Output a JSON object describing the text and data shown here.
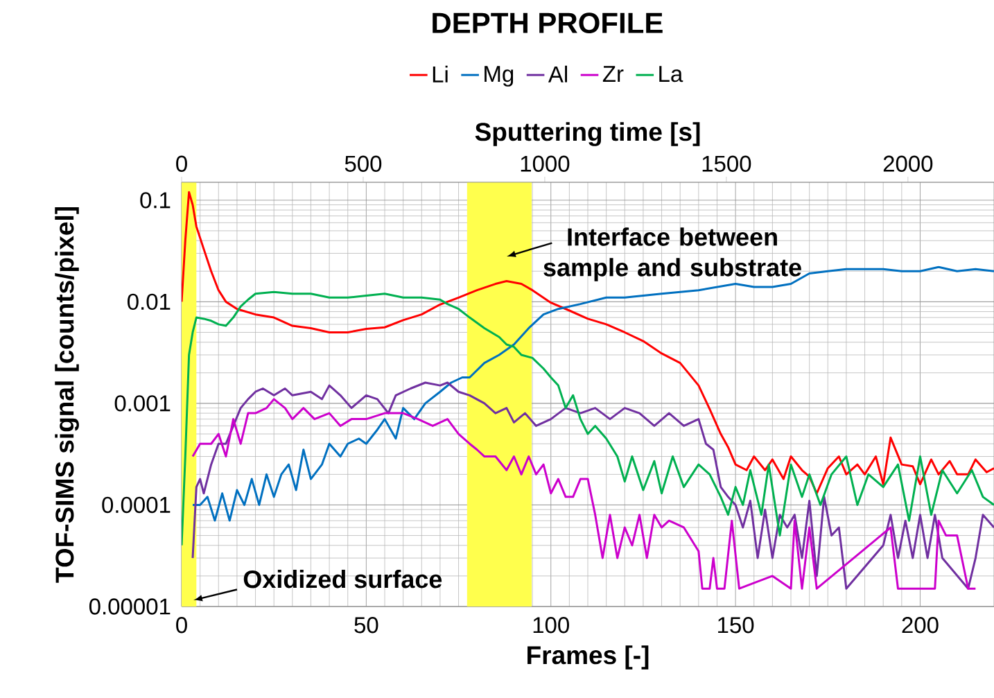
{
  "chart_data": {
    "type": "line",
    "title": "DEPTH PROFILE",
    "xlabel": "Frames [-]",
    "ylabel": "TOF-SIMS signal [counts/pixel]",
    "x2label": "Sputtering time [s]",
    "xlim": [
      0,
      220
    ],
    "xticks": [
      0,
      50,
      100,
      150,
      200
    ],
    "x2lim": [
      0,
      2237
    ],
    "x2ticks": [
      0,
      500,
      1000,
      1500,
      2000
    ],
    "ylim": [
      1e-05,
      0.15
    ],
    "yticks": [
      {
        "value": 1e-05,
        "label": "0.00001"
      },
      {
        "value": 0.0001,
        "label": "0.0001"
      },
      {
        "value": 0.001,
        "label": "0.001"
      },
      {
        "value": 0.01,
        "label": "0.01"
      },
      {
        "value": 0.1,
        "label": "0.1"
      }
    ],
    "log": "y",
    "grid": true,
    "legend": "top",
    "marker": "none",
    "line_style": "solid",
    "bands": [
      {
        "axis": "x",
        "from": 0,
        "to": 4,
        "label": "Oxidized surface",
        "color": "#ffff4d"
      },
      {
        "axis": "x",
        "from": 77.3,
        "to": 94.8,
        "label": "Interface between sample and substrate",
        "color": "#ffff4d"
      }
    ],
    "series": [
      {
        "name": "Li",
        "color": "#ff0000",
        "x": [
          0,
          1,
          2,
          3,
          4,
          6,
          8,
          10,
          12,
          15,
          20,
          25,
          30,
          35,
          40,
          45,
          50,
          55,
          60,
          65,
          70,
          75,
          80,
          85,
          88,
          92,
          95,
          100,
          105,
          110,
          115,
          120,
          125,
          130,
          135,
          140,
          143,
          146,
          148,
          150,
          153,
          155,
          158,
          160,
          163,
          165,
          168,
          170,
          172,
          175,
          178,
          180,
          183,
          185,
          188,
          190,
          192,
          195,
          198,
          200,
          203,
          205,
          208,
          210,
          213,
          215,
          218,
          220
        ],
        "values": [
          0.01,
          0.04,
          0.12,
          0.09,
          0.055,
          0.033,
          0.02,
          0.013,
          0.01,
          0.0085,
          0.0075,
          0.007,
          0.0058,
          0.0055,
          0.005,
          0.005,
          0.0054,
          0.0056,
          0.0066,
          0.0075,
          0.0094,
          0.011,
          0.013,
          0.015,
          0.016,
          0.015,
          0.013,
          0.0098,
          0.0082,
          0.0068,
          0.006,
          0.005,
          0.0041,
          0.0031,
          0.0025,
          0.0015,
          0.00088,
          0.0005,
          0.00037,
          0.00025,
          0.00022,
          0.0003,
          0.00022,
          0.00028,
          0.00018,
          0.0003,
          0.00022,
          0.00019,
          0.00013,
          0.00023,
          0.0003,
          0.0002,
          0.00025,
          0.0002,
          0.0003,
          0.00016,
          0.00046,
          0.00025,
          0.00024,
          0.00016,
          0.00028,
          0.0002,
          0.00027,
          0.0002,
          0.0002,
          0.00028,
          0.00021,
          0.00023
        ]
      },
      {
        "name": "Mg",
        "color": "#0070c0",
        "x": [
          3,
          5,
          7,
          9,
          11,
          13,
          15,
          17,
          19,
          21,
          23,
          25,
          27,
          29,
          31,
          33,
          35,
          38,
          40,
          43,
          45,
          48,
          50,
          53,
          55,
          58,
          60,
          63,
          66,
          70,
          73,
          76,
          78,
          82,
          86,
          90,
          94,
          98,
          102,
          108,
          115,
          120,
          130,
          140,
          150,
          155,
          160,
          165,
          170,
          175,
          180,
          185,
          190,
          195,
          200,
          205,
          210,
          215,
          220
        ],
        "values": [
          0.0001,
          0.0001,
          0.00012,
          7e-05,
          0.00013,
          7e-05,
          0.00014,
          0.0001,
          0.00018,
          0.0001,
          0.0002,
          0.00012,
          0.0002,
          0.00025,
          0.00014,
          0.00035,
          0.00018,
          0.00025,
          0.0004,
          0.0003,
          0.0004,
          0.00045,
          0.0004,
          0.00055,
          0.0007,
          0.00045,
          0.0009,
          0.0007,
          0.001,
          0.0013,
          0.0016,
          0.0018,
          0.0018,
          0.0025,
          0.003,
          0.0038,
          0.0055,
          0.0075,
          0.0085,
          0.0095,
          0.011,
          0.011,
          0.012,
          0.013,
          0.015,
          0.014,
          0.014,
          0.015,
          0.019,
          0.02,
          0.021,
          0.021,
          0.021,
          0.02,
          0.02,
          0.022,
          0.02,
          0.021,
          0.02
        ]
      },
      {
        "name": "Al",
        "color": "#7030a0",
        "x": [
          3,
          4,
          5,
          6,
          8,
          10,
          12,
          14,
          16,
          18,
          20,
          22,
          25,
          28,
          30,
          35,
          38,
          40,
          43,
          46,
          50,
          53,
          56,
          58,
          62,
          66,
          70,
          72,
          75,
          78,
          82,
          85,
          88,
          90,
          93,
          96,
          100,
          104,
          108,
          112,
          116,
          120,
          124,
          128,
          132,
          136,
          140,
          142,
          144,
          146,
          148,
          150,
          152,
          154,
          156,
          158,
          160,
          162,
          164,
          166,
          168,
          170,
          172,
          174,
          176,
          178,
          180,
          190,
          192,
          194,
          196,
          198,
          200,
          202,
          204,
          206,
          213,
          215,
          217,
          220
        ],
        "values": [
          3e-05,
          0.00015,
          0.00018,
          0.00013,
          0.00025,
          0.0004,
          0.0004,
          0.0006,
          0.0009,
          0.0011,
          0.0013,
          0.0014,
          0.0012,
          0.0014,
          0.0012,
          0.0013,
          0.0011,
          0.0015,
          0.0012,
          0.0009,
          0.0012,
          0.0011,
          0.0008,
          0.0012,
          0.0014,
          0.0016,
          0.0015,
          0.0016,
          0.0013,
          0.0012,
          0.001,
          0.0008,
          0.0009,
          0.00065,
          0.0008,
          0.0006,
          0.0007,
          0.0009,
          0.0008,
          0.0009,
          0.0007,
          0.0009,
          0.0008,
          0.0006,
          0.0008,
          0.0006,
          0.0007,
          0.0004,
          0.00035,
          0.00015,
          0.00012,
          0.0001,
          6e-05,
          0.00011,
          3e-05,
          9e-05,
          3e-05,
          8e-05,
          6e-05,
          8e-05,
          3e-05,
          0.00011,
          2e-05,
          0.00012,
          5e-05,
          6e-05,
          1.5e-05,
          4e-05,
          8e-05,
          3e-05,
          7e-05,
          3e-05,
          8e-05,
          3e-05,
          8e-05,
          3e-05,
          1.5e-05,
          3e-05,
          8e-05,
          6e-05
        ]
      },
      {
        "name": "Zr",
        "color": "#cc00cc",
        "x": [
          3,
          5,
          8,
          10,
          12,
          14,
          16,
          18,
          20,
          23,
          25,
          28,
          30,
          33,
          36,
          40,
          43,
          46,
          50,
          55,
          60,
          64,
          68,
          72,
          75,
          78,
          80,
          82,
          85,
          88,
          90,
          92,
          94,
          96,
          98,
          100,
          102,
          104,
          106,
          108,
          110,
          112,
          114,
          116,
          118,
          120,
          122,
          124,
          126,
          128,
          130,
          132,
          136,
          140,
          141,
          143,
          144,
          145,
          147,
          149,
          151,
          160,
          165,
          166,
          168,
          170,
          172,
          182,
          192,
          194,
          204,
          205,
          207,
          210,
          213,
          215
        ],
        "values": [
          0.0003,
          0.0004,
          0.0004,
          0.0005,
          0.0003,
          0.0007,
          0.0004,
          0.0008,
          0.0008,
          0.0009,
          0.0011,
          0.0009,
          0.0007,
          0.0009,
          0.0007,
          0.0008,
          0.0006,
          0.0007,
          0.0007,
          0.0008,
          0.0008,
          0.0007,
          0.0006,
          0.0007,
          0.0005,
          0.0004,
          0.00035,
          0.0003,
          0.0003,
          0.00022,
          0.0003,
          0.0002,
          0.0003,
          0.0002,
          0.00025,
          0.00013,
          0.00018,
          0.00012,
          0.00012,
          0.00018,
          0.00018,
          8e-05,
          3e-05,
          8e-05,
          3e-05,
          6e-05,
          4e-05,
          8e-05,
          3e-05,
          8e-05,
          6e-05,
          7e-05,
          6e-05,
          3.5e-05,
          1.5e-05,
          1.5e-05,
          3e-05,
          1.5e-05,
          1.5e-05,
          7e-05,
          1.5e-05,
          2e-05,
          1.5e-05,
          7e-05,
          1.5e-05,
          6e-05,
          1.5e-05,
          3e-05,
          6e-05,
          1.5e-05,
          1.5e-05,
          7e-05,
          5e-05,
          5e-05,
          1.5e-05,
          1.5e-05
        ]
      },
      {
        "name": "La",
        "color": "#00b050",
        "x": [
          0,
          1,
          2,
          3,
          4,
          6,
          8,
          10,
          12,
          14,
          16,
          18,
          20,
          25,
          30,
          35,
          40,
          45,
          50,
          55,
          60,
          65,
          70,
          72,
          75,
          78,
          82,
          86,
          88,
          90,
          92,
          95,
          98,
          100,
          102,
          104,
          106,
          108,
          110,
          112,
          115,
          118,
          120,
          122,
          125,
          128,
          130,
          133,
          136,
          140,
          143,
          146,
          148,
          150,
          152,
          154,
          157,
          159,
          162,
          165,
          168,
          170,
          173,
          176,
          180,
          183,
          186,
          190,
          194,
          197,
          200,
          203,
          206,
          210,
          214,
          217,
          220
        ],
        "values": [
          4e-05,
          0.0003,
          0.003,
          0.005,
          0.007,
          0.0068,
          0.0065,
          0.006,
          0.0058,
          0.007,
          0.009,
          0.0105,
          0.012,
          0.0125,
          0.012,
          0.012,
          0.011,
          0.011,
          0.0115,
          0.012,
          0.011,
          0.011,
          0.0105,
          0.0095,
          0.0085,
          0.007,
          0.0055,
          0.0045,
          0.0038,
          0.0036,
          0.003,
          0.0028,
          0.0022,
          0.0018,
          0.0015,
          0.0009,
          0.0012,
          0.0007,
          0.0005,
          0.0006,
          0.00045,
          0.0003,
          0.00017,
          0.0003,
          0.00014,
          0.00027,
          0.00013,
          0.0003,
          0.00015,
          0.00025,
          0.0002,
          0.00012,
          8e-05,
          0.00015,
          0.0001,
          0.00022,
          8e-05,
          0.00025,
          5e-05,
          0.00025,
          0.00012,
          0.0002,
          0.0001,
          0.0002,
          0.0003,
          0.0001,
          0.0002,
          0.00015,
          0.00025,
          7e-05,
          0.0003,
          8e-05,
          0.00022,
          0.00013,
          0.00022,
          0.00012,
          0.0001
        ]
      }
    ]
  }
}
